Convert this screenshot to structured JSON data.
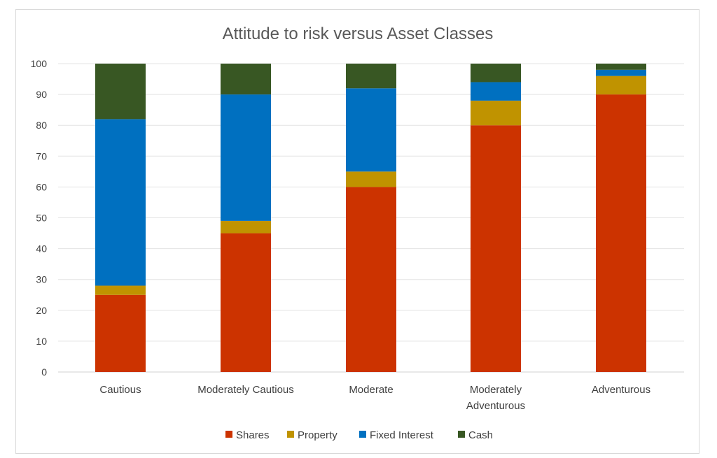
{
  "chart_data": {
    "type": "bar",
    "stacked": true,
    "title": "Attitude to risk versus Asset Classes",
    "xlabel": "",
    "ylabel": "",
    "ylim": [
      0,
      100
    ],
    "yticks": [
      "0",
      "10",
      "20",
      "30",
      "40",
      "50",
      "60",
      "70",
      "80",
      "90",
      "100"
    ],
    "grid": true,
    "legend_position": "bottom",
    "categories": [
      [
        "Cautious"
      ],
      [
        "Moderately Cautious"
      ],
      [
        "Moderate"
      ],
      [
        "Moderately",
        "Adventurous"
      ],
      [
        "Adventurous"
      ]
    ],
    "series": [
      {
        "name": "Shares",
        "color": "#cc3300",
        "values": [
          25,
          45,
          60,
          80,
          90
        ]
      },
      {
        "name": "Property",
        "color": "#c09300",
        "values": [
          3,
          4,
          5,
          8,
          6
        ]
      },
      {
        "name": "Fixed Interest",
        "color": "#0070c0",
        "values": [
          54,
          41,
          27,
          6,
          2
        ]
      },
      {
        "name": "Cash",
        "color": "#385723",
        "values": [
          18,
          10,
          8,
          6,
          2
        ]
      }
    ]
  }
}
